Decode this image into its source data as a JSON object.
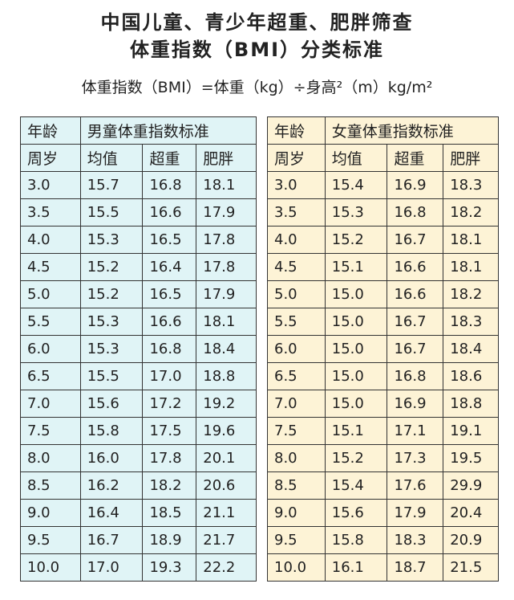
{
  "header": {
    "title": [
      "中国儿童、青少年超重、肥胖筛查",
      "体重指数（BMI）分类标准"
    ],
    "formula": "体重指数（BMI）=体重（kg）÷身高²（m）kg/m²"
  },
  "boys": {
    "caption": [
      "年龄",
      "男童体重指数标准"
    ],
    "columns": [
      "周岁",
      "均值",
      "超重",
      "肥胖"
    ],
    "rows": [
      [
        "3.0",
        "15.7",
        "16.8",
        "18.1"
      ],
      [
        "3.5",
        "15.5",
        "16.6",
        "17.9"
      ],
      [
        "4.0",
        "15.3",
        "16.5",
        "17.8"
      ],
      [
        "4.5",
        "15.2",
        "16.4",
        "17.8"
      ],
      [
        "5.0",
        "15.2",
        "16.5",
        "17.9"
      ],
      [
        "5.5",
        "15.3",
        "16.6",
        "18.1"
      ],
      [
        "6.0",
        "15.3",
        "16.8",
        "18.4"
      ],
      [
        "6.5",
        "15.5",
        "17.0",
        "18.8"
      ],
      [
        "7.0",
        "15.6",
        "17.2",
        "19.2"
      ],
      [
        "7.5",
        "15.8",
        "17.5",
        "19.6"
      ],
      [
        "8.0",
        "16.0",
        "17.8",
        "20.1"
      ],
      [
        "8.5",
        "16.2",
        "18.2",
        "20.6"
      ],
      [
        "9.0",
        "16.4",
        "18.5",
        "21.1"
      ],
      [
        "9.5",
        "16.7",
        "18.9",
        "21.7"
      ],
      [
        "10.0",
        "17.0",
        "19.3",
        "22.2"
      ]
    ]
  },
  "girls": {
    "caption": [
      "年龄",
      "女童体重指数标准"
    ],
    "columns": [
      "周岁",
      "均值",
      "超重",
      "肥胖"
    ],
    "rows": [
      [
        "3.0",
        "15.4",
        "16.9",
        "18.3"
      ],
      [
        "3.5",
        "15.3",
        "16.8",
        "18.2"
      ],
      [
        "4.0",
        "15.2",
        "16.7",
        "18.1"
      ],
      [
        "4.5",
        "15.1",
        "16.6",
        "18.1"
      ],
      [
        "5.0",
        "15.0",
        "16.6",
        "18.2"
      ],
      [
        "5.5",
        "15.0",
        "16.7",
        "18.3"
      ],
      [
        "6.0",
        "15.0",
        "16.7",
        "18.4"
      ],
      [
        "6.5",
        "15.0",
        "16.8",
        "18.6"
      ],
      [
        "7.0",
        "15.0",
        "16.9",
        "18.8"
      ],
      [
        "7.5",
        "15.1",
        "17.1",
        "19.1"
      ],
      [
        "8.0",
        "15.2",
        "17.3",
        "19.5"
      ],
      [
        "8.5",
        "15.4",
        "17.6",
        "29.9"
      ],
      [
        "9.0",
        "15.6",
        "17.9",
        "20.4"
      ],
      [
        "9.5",
        "15.8",
        "18.3",
        "20.9"
      ],
      [
        "10.0",
        "16.1",
        "18.7",
        "21.5"
      ]
    ]
  }
}
